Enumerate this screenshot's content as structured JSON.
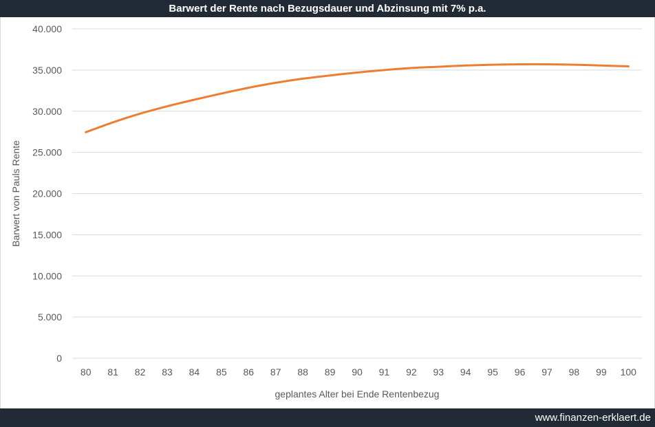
{
  "chart_data": {
    "type": "line",
    "title": "Barwert der Rente nach Bezugsdauer und Abzinsung mit 7% p.a.",
    "xlabel": "geplantes Alter bei Ende Rentenbezug",
    "ylabel": "Barwert von Pauls Rente",
    "x": [
      "80",
      "81",
      "82",
      "83",
      "84",
      "85",
      "86",
      "87",
      "88",
      "89",
      "90",
      "91",
      "92",
      "93",
      "94",
      "95",
      "96",
      "97",
      "98",
      "99",
      "100"
    ],
    "series": [
      {
        "color": "#ed7d31",
        "values": [
          27450,
          28650,
          29700,
          30600,
          31400,
          32150,
          32850,
          33450,
          33950,
          34350,
          34700,
          35000,
          35250,
          35400,
          35550,
          35650,
          35700,
          35700,
          35650,
          35550,
          35450
        ]
      }
    ],
    "yticks": [
      "0",
      "5.000",
      "10.000",
      "15.000",
      "20.000",
      "25.000",
      "30.000",
      "35.000",
      "40.000"
    ],
    "ylim": [
      0,
      40000
    ],
    "grid": true
  },
  "footer": {
    "source": "www.finanzen-erklaert.de"
  },
  "colors": {
    "bar": "#222a35",
    "line": "#ed7d31",
    "grid": "#d9d9d9"
  }
}
